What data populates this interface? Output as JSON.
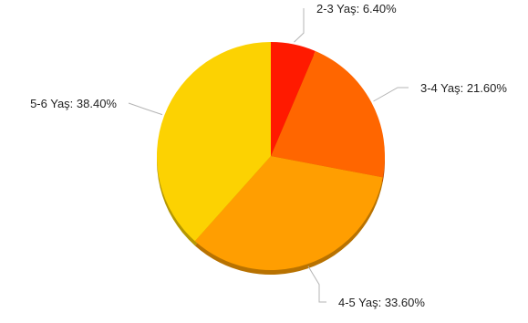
{
  "chart_data": {
    "type": "pie",
    "slices": [
      {
        "label": "2-3 Yaş",
        "value": 6.4,
        "display": "2-3 Yaş: 6.40%",
        "color": "#ff1a00"
      },
      {
        "label": "3-4 Yaş",
        "value": 21.6,
        "display": "3-4 Yaş: 21.60%",
        "color": "#ff6600"
      },
      {
        "label": "4-5 Yaş",
        "value": 33.6,
        "display": "4-5 Yaş: 33.60%",
        "color": "#ff9e01"
      },
      {
        "label": "5-6 Yaş",
        "value": 38.4,
        "display": "5-6 Yaş: 38.40%",
        "color": "#fcd202"
      }
    ],
    "start_angle": "12 o'clock",
    "direction": "clockwise",
    "legend": "none"
  }
}
